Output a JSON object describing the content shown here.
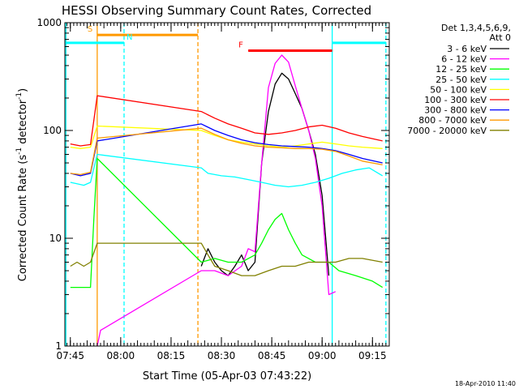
{
  "chart_data": {
    "type": "line",
    "title": "HESSI Observing Summary Count Rates, Corrected",
    "xlabel": "Start Time (05-Apr-03 07:43:22)",
    "ylabel_main": "Corrected Count Rate (s",
    "ylabel_sup1": "-1",
    "ylabel_mid": " detector",
    "ylabel_sup2": "-1",
    "ylabel_end": ")",
    "y_scale": "log",
    "ylim": [
      1,
      1000
    ],
    "xlim": [
      "07:43:22",
      "09:20:00"
    ],
    "x_ticks": [
      "07:45",
      "08:00",
      "08:15",
      "08:30",
      "08:45",
      "09:00",
      "09:15"
    ],
    "y_ticks": [
      "1",
      "10",
      "100",
      "1000"
    ],
    "legend_header": [
      "Det 1,3,4,5,6,9,",
      "Att 0"
    ],
    "series": [
      {
        "name": "3 - 6 keV",
        "color": "#000000",
        "points": [
          [
            "08:24",
            5.5
          ],
          [
            "08:26",
            8
          ],
          [
            "08:28",
            6
          ],
          [
            "08:30",
            5
          ],
          [
            "08:32",
            4.5
          ],
          [
            "08:34",
            5.5
          ],
          [
            "08:36",
            7
          ],
          [
            "08:38",
            5
          ],
          [
            "08:40",
            6
          ],
          [
            "08:42",
            50
          ],
          [
            "08:44",
            150
          ],
          [
            "08:46",
            270
          ],
          [
            "08:48",
            340
          ],
          [
            "08:50",
            300
          ],
          [
            "08:52",
            220
          ],
          [
            "08:54",
            160
          ],
          [
            "08:56",
            100
          ],
          [
            "08:58",
            60
          ],
          [
            "09:00",
            25
          ],
          [
            "09:02",
            4.5
          ]
        ]
      },
      {
        "name": "6 - 12 keV",
        "color": "#ff00ff",
        "points": [
          [
            "07:53",
            1
          ],
          [
            "07:54",
            1.4
          ],
          [
            "08:24",
            5
          ],
          [
            "08:28",
            5
          ],
          [
            "08:32",
            4.5
          ],
          [
            "08:36",
            5.5
          ],
          [
            "08:38",
            8
          ],
          [
            "08:40",
            7.5
          ],
          [
            "08:42",
            50
          ],
          [
            "08:44",
            250
          ],
          [
            "08:46",
            420
          ],
          [
            "08:48",
            500
          ],
          [
            "08:50",
            430
          ],
          [
            "08:52",
            260
          ],
          [
            "08:54",
            160
          ],
          [
            "08:56",
            100
          ],
          [
            "08:58",
            55
          ],
          [
            "09:00",
            20
          ],
          [
            "09:02",
            3
          ],
          [
            "09:04",
            3.2
          ]
        ]
      },
      {
        "name": "12 - 25 keV",
        "color": "#00ff00",
        "points": [
          [
            "07:45",
            3.5
          ],
          [
            "07:47",
            3.5
          ],
          [
            "07:49",
            3.5
          ],
          [
            "07:51",
            3.5
          ],
          [
            "07:52",
            15
          ],
          [
            "07:53",
            55
          ],
          [
            "08:24",
            6
          ],
          [
            "08:28",
            6.5
          ],
          [
            "08:32",
            6
          ],
          [
            "08:36",
            6
          ],
          [
            "08:40",
            7
          ],
          [
            "08:42",
            9
          ],
          [
            "08:44",
            12
          ],
          [
            "08:46",
            15
          ],
          [
            "08:48",
            17
          ],
          [
            "08:50",
            12
          ],
          [
            "08:52",
            9
          ],
          [
            "08:54",
            7
          ],
          [
            "08:58",
            6
          ],
          [
            "09:02",
            6
          ],
          [
            "09:05",
            5
          ],
          [
            "09:10",
            4.5
          ],
          [
            "09:15",
            4
          ],
          [
            "09:18",
            3.5
          ]
        ]
      },
      {
        "name": "25 - 50 keV",
        "color": "#00ffff",
        "points": [
          [
            "07:45",
            33
          ],
          [
            "07:47",
            32
          ],
          [
            "07:49",
            31
          ],
          [
            "07:51",
            33
          ],
          [
            "07:53",
            60
          ],
          [
            "08:24",
            45
          ],
          [
            "08:26",
            40
          ],
          [
            "08:30",
            38
          ],
          [
            "08:34",
            37
          ],
          [
            "08:38",
            35
          ],
          [
            "08:42",
            33
          ],
          [
            "08:46",
            31
          ],
          [
            "08:50",
            30
          ],
          [
            "08:54",
            31
          ],
          [
            "08:58",
            33
          ],
          [
            "09:02",
            36
          ],
          [
            "09:06",
            40
          ],
          [
            "09:10",
            43
          ],
          [
            "09:14",
            45
          ],
          [
            "09:18",
            38
          ]
        ]
      },
      {
        "name": "50 - 100 keV",
        "color": "#ffff00",
        "points": [
          [
            "07:45",
            70
          ],
          [
            "07:48",
            68
          ],
          [
            "07:51",
            70
          ],
          [
            "07:53",
            110
          ],
          [
            "08:24",
            100
          ],
          [
            "08:28",
            90
          ],
          [
            "08:32",
            82
          ],
          [
            "08:36",
            78
          ],
          [
            "08:40",
            75
          ],
          [
            "08:44",
            72
          ],
          [
            "08:48",
            70
          ],
          [
            "08:52",
            72
          ],
          [
            "08:56",
            75
          ],
          [
            "09:00",
            78
          ],
          [
            "09:04",
            75
          ],
          [
            "09:08",
            72
          ],
          [
            "09:12",
            70
          ],
          [
            "09:18",
            68
          ]
        ]
      },
      {
        "name": "100 - 300 keV",
        "color": "#ff0000",
        "points": [
          [
            "07:45",
            75
          ],
          [
            "07:48",
            72
          ],
          [
            "07:51",
            74
          ],
          [
            "07:53",
            210
          ],
          [
            "08:24",
            150
          ],
          [
            "08:28",
            130
          ],
          [
            "08:32",
            115
          ],
          [
            "08:36",
            105
          ],
          [
            "08:40",
            95
          ],
          [
            "08:44",
            92
          ],
          [
            "08:48",
            95
          ],
          [
            "08:52",
            100
          ],
          [
            "08:56",
            108
          ],
          [
            "09:00",
            112
          ],
          [
            "09:04",
            105
          ],
          [
            "09:08",
            95
          ],
          [
            "09:12",
            88
          ],
          [
            "09:18",
            80
          ]
        ]
      },
      {
        "name": "300 - 800 keV",
        "color": "#0000ff",
        "points": [
          [
            "07:45",
            40
          ],
          [
            "07:48",
            38
          ],
          [
            "07:51",
            40
          ],
          [
            "07:53",
            80
          ],
          [
            "08:24",
            115
          ],
          [
            "08:28",
            100
          ],
          [
            "08:32",
            90
          ],
          [
            "08:36",
            82
          ],
          [
            "08:40",
            77
          ],
          [
            "08:44",
            74
          ],
          [
            "08:48",
            72
          ],
          [
            "08:52",
            71
          ],
          [
            "08:56",
            70
          ],
          [
            "09:00",
            68
          ],
          [
            "09:04",
            65
          ],
          [
            "09:08",
            60
          ],
          [
            "09:12",
            55
          ],
          [
            "09:18",
            50
          ]
        ]
      },
      {
        "name": "800 - 7000 keV",
        "color": "#ff9900",
        "points": [
          [
            "07:45",
            40
          ],
          [
            "07:48",
            39
          ],
          [
            "07:51",
            41
          ],
          [
            "07:53",
            85
          ],
          [
            "08:24",
            105
          ],
          [
            "08:28",
            92
          ],
          [
            "08:32",
            82
          ],
          [
            "08:36",
            76
          ],
          [
            "08:40",
            72
          ],
          [
            "08:44",
            70
          ],
          [
            "08:48",
            69
          ],
          [
            "08:52",
            68
          ],
          [
            "08:56",
            68
          ],
          [
            "09:00",
            67
          ],
          [
            "09:04",
            64
          ],
          [
            "09:08",
            58
          ],
          [
            "09:12",
            52
          ],
          [
            "09:18",
            48
          ]
        ]
      },
      {
        "name": "7000 - 20000 keV",
        "color": "#808000",
        "points": [
          [
            "07:45",
            5.5
          ],
          [
            "07:47",
            6
          ],
          [
            "07:49",
            5.5
          ],
          [
            "07:51",
            6
          ],
          [
            "07:53",
            9
          ],
          [
            "08:24",
            9
          ],
          [
            "08:26",
            7
          ],
          [
            "08:28",
            5.5
          ],
          [
            "08:32",
            5
          ],
          [
            "08:36",
            4.5
          ],
          [
            "08:40",
            4.5
          ],
          [
            "08:44",
            5
          ],
          [
            "08:48",
            5.5
          ],
          [
            "08:52",
            5.5
          ],
          [
            "08:56",
            6
          ],
          [
            "09:00",
            6
          ],
          [
            "09:04",
            6
          ],
          [
            "09:08",
            6.5
          ],
          [
            "09:12",
            6.5
          ],
          [
            "09:18",
            6
          ]
        ]
      }
    ],
    "vertical_lines": [
      {
        "time": "07:43:40",
        "style": "solid",
        "color": "#00ffff"
      },
      {
        "time": "07:53:00",
        "style": "solid",
        "color": "#ff9900"
      },
      {
        "time": "08:01:00",
        "style": "dashed",
        "color": "#00ffff"
      },
      {
        "time": "08:23:00",
        "style": "dashed",
        "color": "#ff9900"
      },
      {
        "time": "09:03:00",
        "style": "solid",
        "color": "#00ffff"
      },
      {
        "time": "09:19:00",
        "style": "dashed",
        "color": "#00ffff"
      }
    ],
    "annotation_bars": [
      {
        "label": "S",
        "start": "07:53:00",
        "end": "08:23:00",
        "y": 770,
        "color": "#ff9900",
        "label_anchor": "start"
      },
      {
        "label": "N",
        "start": "07:43:40",
        "end": "08:01:00",
        "y": 650,
        "color": "#00ffff",
        "label_anchor": "end"
      },
      {
        "label": "F",
        "start": "08:38:00",
        "end": "09:03:00",
        "y": 550,
        "color": "#ff0000",
        "label_anchor": "start"
      },
      {
        "label": "",
        "start": "09:03:00",
        "end": "09:19:00",
        "y": 650,
        "color": "#00ffff",
        "label_anchor": "none"
      }
    ]
  },
  "footer_stamp": "18-Apr-2010 11:40"
}
